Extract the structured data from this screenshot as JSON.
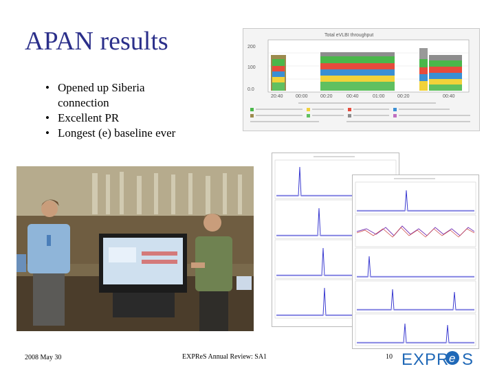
{
  "slide": {
    "title": "APAN results",
    "bullets": [
      "Opened up Siberia connection",
      "Excellent PR",
      "Longest (e) baseline ever"
    ]
  },
  "footer": {
    "date": "2008 May 30",
    "center": "EXPReS Annual Review: SA1",
    "page": "10"
  },
  "logo": {
    "text_left": "EXPR",
    "text_e": "e",
    "text_right": "S",
    "color": "#1f68b7"
  },
  "colors": {
    "title": "#2b2f8a"
  }
}
